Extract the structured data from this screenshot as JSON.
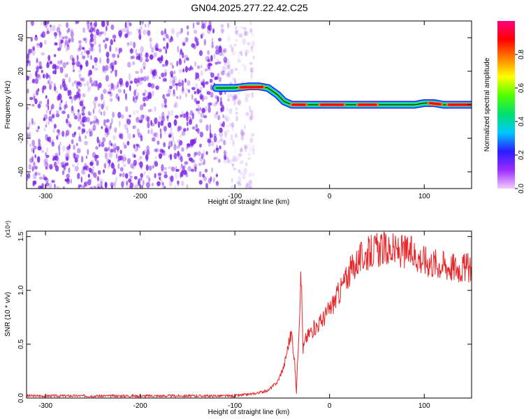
{
  "title": "GN04.2025.277.22.42.C25",
  "colors": {
    "scatter_purple": "#7a1fe6",
    "snr_line": "#e8262a",
    "axis": "#000000"
  },
  "chart_data": [
    {
      "type": "heatmap",
      "xlabel": "Height of straight line (km)",
      "ylabel": "Frequency (Hz)",
      "xlim": [
        -320,
        150
      ],
      "ylim": [
        -50,
        50
      ],
      "x_ticks": [
        -300,
        -200,
        -100,
        0,
        100
      ],
      "y_ticks": [
        -40,
        -20,
        0,
        20,
        40
      ],
      "colorbar": {
        "label": "Normalized spectral amplitude",
        "range": [
          0,
          1
        ],
        "ticks": [
          "0.0",
          "0.2",
          "0.4",
          "0.6",
          "0.8"
        ],
        "tick_values": [
          0.0,
          0.2,
          0.4,
          0.6,
          0.8
        ],
        "colors": [
          "#f2ccff",
          "#9c2cff",
          "#2a1cff",
          "#00c8ff",
          "#00e070",
          "#50ff00",
          "#ffff00",
          "#ff8000",
          "#ff0000",
          "#ff0080"
        ]
      },
      "noise_region": {
        "x_range": [
          -320,
          -90
        ],
        "y_range": [
          -50,
          50
        ]
      },
      "ridge": {
        "x": [
          -120,
          -100,
          -85,
          -75,
          -65,
          -55,
          -48,
          -40,
          -30,
          -10,
          10,
          30,
          60,
          90,
          100,
          110,
          120,
          150
        ],
        "y": [
          10,
          10,
          11,
          11,
          10,
          6,
          2,
          0,
          0,
          0,
          0,
          0,
          0,
          0,
          1,
          1,
          0,
          0
        ]
      }
    },
    {
      "type": "line",
      "xlabel": "Height of straight line (km)",
      "ylabel": "SNR (10 * v/v)",
      "scale_note": "(x10⁴)",
      "xlim": [
        -320,
        150
      ],
      "ylim": [
        0,
        1.55
      ],
      "x_ticks": [
        -300,
        -200,
        -100,
        0,
        100
      ],
      "y_ticks": [
        0.0,
        0.5,
        1.0,
        1.5
      ],
      "y_tick_labels": [
        "0.0",
        "0.5",
        "1.0",
        "1.5"
      ],
      "series": [
        {
          "x": [
            -320,
            -100,
            -80,
            -65,
            -55,
            -48,
            -43,
            -40,
            -37,
            -35,
            -32,
            -30,
            -28,
            -25,
            -20,
            -10,
            0,
            10,
            20,
            30,
            40,
            50,
            60,
            70,
            80,
            90,
            100,
            110,
            120,
            130,
            140,
            150
          ],
          "y": [
            0.02,
            0.02,
            0.04,
            0.07,
            0.15,
            0.3,
            0.52,
            0.6,
            0.35,
            0.05,
            0.75,
            1.15,
            0.45,
            0.55,
            0.62,
            0.7,
            0.82,
            0.98,
            1.15,
            1.28,
            1.34,
            1.38,
            1.38,
            1.36,
            1.36,
            1.33,
            1.28,
            1.26,
            1.24,
            1.22,
            1.21,
            1.2
          ]
        }
      ]
    }
  ]
}
